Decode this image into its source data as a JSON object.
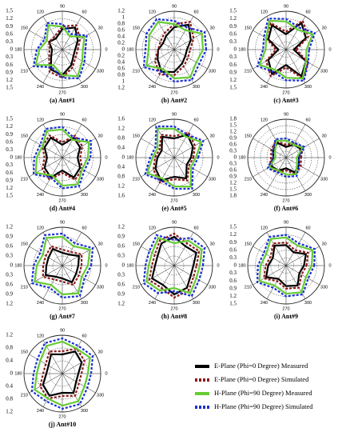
{
  "chart_data": [
    {
      "type": "polar",
      "title": "(a) Ant#1",
      "theta": [
        0,
        30,
        60,
        90,
        120,
        150,
        180,
        210,
        240,
        270,
        300,
        330
      ],
      "rlim": [
        0,
        1.5
      ],
      "rticks": [
        0,
        0.3,
        0.6,
        0.9,
        1.2,
        1.5
      ],
      "series": [
        {
          "name": "E-Plane (Phi=0 Degree) Measured",
          "color": "#000000",
          "values": [
            0.5,
            0.7,
            1.0,
            0.8,
            0.5,
            0.6,
            0.4,
            0.5,
            0.9,
            1.0,
            0.7,
            0.5
          ]
        },
        {
          "name": "E-Plane (Phi=0 Degree) Simulated",
          "color": "#8b1a1a",
          "values": [
            0.6,
            0.8,
            1.1,
            0.9,
            0.6,
            0.6,
            0.5,
            0.6,
            1.0,
            1.1,
            0.8,
            0.6
          ]
        },
        {
          "name": "H-Plane (Phi=90 Degree) Measured",
          "color": "#66cc33",
          "values": [
            0.8,
            1.0,
            0.6,
            0.9,
            1.1,
            0.7,
            0.9,
            1.2,
            0.7,
            1.0,
            1.2,
            0.9
          ]
        },
        {
          "name": "H-Plane (Phi=90 Degree) Simulated",
          "color": "#1a2fd6",
          "values": [
            0.9,
            1.1,
            0.7,
            1.0,
            1.2,
            0.8,
            1.0,
            1.3,
            0.8,
            1.1,
            1.3,
            1.0
          ]
        }
      ]
    },
    {
      "type": "polar",
      "title": "(b) Ant#2",
      "theta": [
        0,
        30,
        60,
        90,
        120,
        150,
        180,
        210,
        240,
        270,
        300,
        330
      ],
      "rlim": [
        0,
        1.2
      ],
      "rticks": [
        0,
        0.2,
        0.4,
        0.6,
        0.8,
        1.0,
        1.2
      ],
      "series": [
        {
          "name": "E-Plane (Phi=0 Degree) Measured",
          "color": "#000000",
          "values": [
            0.4,
            0.6,
            0.9,
            0.7,
            0.5,
            0.4,
            0.5,
            0.6,
            0.8,
            0.7,
            0.5,
            0.4
          ]
        },
        {
          "name": "E-Plane (Phi=0 Degree) Simulated",
          "color": "#8b1a1a",
          "values": [
            0.5,
            0.7,
            1.0,
            0.8,
            0.6,
            0.5,
            0.5,
            0.7,
            0.9,
            0.8,
            0.6,
            0.5
          ]
        },
        {
          "name": "H-Plane (Phi=90 Degree) Measured",
          "color": "#66cc33",
          "values": [
            0.9,
            1.0,
            0.7,
            0.8,
            1.0,
            0.9,
            0.8,
            1.0,
            0.7,
            0.9,
            1.0,
            0.8
          ]
        },
        {
          "name": "H-Plane (Phi=90 Degree) Simulated",
          "color": "#1a2fd6",
          "values": [
            1.0,
            1.1,
            0.8,
            0.9,
            1.1,
            1.0,
            0.9,
            1.1,
            0.8,
            1.0,
            1.1,
            0.9
          ]
        }
      ]
    },
    {
      "type": "polar",
      "title": "(c) Ant#3",
      "theta": [
        0,
        30,
        60,
        90,
        120,
        150,
        180,
        210,
        240,
        270,
        300,
        330
      ],
      "rlim": [
        0,
        1.5
      ],
      "rticks": [
        0,
        0.3,
        0.6,
        0.9,
        1.2,
        1.5
      ],
      "series": [
        {
          "name": "E-Plane (Phi=0 Degree) Measured",
          "color": "#000000",
          "values": [
            0.3,
            0.9,
            1.2,
            0.6,
            1.1,
            0.8,
            0.3,
            0.8,
            1.1,
            0.6,
            1.2,
            0.9
          ]
        },
        {
          "name": "E-Plane (Phi=0 Degree) Simulated",
          "color": "#8b1a1a",
          "values": [
            0.4,
            1.0,
            1.3,
            0.7,
            1.2,
            0.9,
            0.4,
            0.9,
            1.2,
            0.7,
            1.3,
            1.0
          ]
        },
        {
          "name": "H-Plane (Phi=90 Degree) Measured",
          "color": "#66cc33",
          "values": [
            0.8,
            1.2,
            0.9,
            1.1,
            1.3,
            0.9,
            0.8,
            1.2,
            0.9,
            1.1,
            1.3,
            0.9
          ]
        },
        {
          "name": "H-Plane (Phi=90 Degree) Simulated",
          "color": "#1a2fd6",
          "values": [
            0.9,
            1.3,
            1.0,
            1.2,
            1.4,
            1.0,
            0.9,
            1.3,
            1.0,
            1.2,
            1.4,
            1.0
          ]
        }
      ]
    },
    {
      "type": "polar",
      "title": "(d) Ant#4",
      "theta": [
        0,
        30,
        60,
        90,
        120,
        150,
        180,
        210,
        240,
        270,
        300,
        330
      ],
      "rlim": [
        0,
        1.5
      ],
      "rticks": [
        0,
        0.3,
        0.6,
        0.9,
        1.2,
        1.5
      ],
      "series": [
        {
          "name": "E-Plane (Phi=0 Degree) Measured",
          "color": "#000000",
          "values": [
            0.6,
            0.8,
            0.9,
            0.5,
            0.9,
            0.8,
            0.6,
            0.8,
            0.9,
            0.5,
            0.9,
            0.8
          ]
        },
        {
          "name": "E-Plane (Phi=0 Degree) Simulated",
          "color": "#8b1a1a",
          "values": [
            0.7,
            0.9,
            1.0,
            0.6,
            1.0,
            0.9,
            0.7,
            0.9,
            1.0,
            0.6,
            1.0,
            0.9
          ]
        },
        {
          "name": "H-Plane (Phi=90 Degree) Measured",
          "color": "#66cc33",
          "values": [
            1.0,
            1.2,
            0.8,
            1.1,
            1.2,
            0.9,
            1.0,
            1.2,
            0.8,
            1.1,
            1.2,
            0.9
          ]
        },
        {
          "name": "H-Plane (Phi=90 Degree) Simulated",
          "color": "#1a2fd6",
          "values": [
            1.1,
            1.3,
            0.9,
            1.2,
            1.3,
            1.0,
            1.1,
            1.3,
            0.9,
            1.2,
            1.3,
            1.0
          ]
        }
      ]
    },
    {
      "type": "polar",
      "title": "(e) Ant#5",
      "theta": [
        0,
        30,
        60,
        90,
        120,
        150,
        180,
        210,
        240,
        270,
        300,
        330
      ],
      "rlim": [
        0,
        1.6
      ],
      "rticks": [
        0,
        0.4,
        0.8,
        1.2,
        1.6
      ],
      "series": [
        {
          "name": "E-Plane (Phi=0 Degree) Measured",
          "color": "#000000",
          "values": [
            0.7,
            0.9,
            1.1,
            0.8,
            1.0,
            0.6,
            0.7,
            0.9,
            1.1,
            0.8,
            1.0,
            0.6
          ]
        },
        {
          "name": "E-Plane (Phi=0 Degree) Simulated",
          "color": "#8b1a1a",
          "values": [
            0.8,
            1.0,
            1.2,
            0.9,
            1.1,
            0.7,
            0.8,
            1.0,
            1.2,
            0.9,
            1.1,
            0.7
          ]
        },
        {
          "name": "H-Plane (Phi=90 Degree) Measured",
          "color": "#66cc33",
          "values": [
            0.9,
            1.3,
            1.0,
            1.2,
            1.4,
            0.8,
            0.9,
            1.3,
            1.0,
            1.2,
            1.4,
            0.8
          ]
        },
        {
          "name": "H-Plane (Phi=90 Degree) Simulated",
          "color": "#1a2fd6",
          "values": [
            1.0,
            1.4,
            1.1,
            1.3,
            1.5,
            0.9,
            1.0,
            1.4,
            1.1,
            1.3,
            1.5,
            0.9
          ]
        }
      ]
    },
    {
      "type": "polar",
      "title": "(f) Ant#6",
      "theta": [
        0,
        30,
        60,
        90,
        120,
        150,
        180,
        210,
        240,
        270,
        300,
        330
      ],
      "rlim": [
        0,
        1.8
      ],
      "rticks": [
        0,
        0.3,
        0.6,
        0.9,
        1.2,
        1.5,
        1.8
      ],
      "series": [
        {
          "name": "E-Plane (Phi=0 Degree) Measured",
          "color": "#000000",
          "values": [
            0.6,
            0.8,
            0.7,
            0.5,
            0.8,
            0.7,
            0.6,
            0.8,
            0.7,
            0.5,
            0.8,
            0.7
          ]
        },
        {
          "name": "E-Plane (Phi=0 Degree) Simulated",
          "color": "#8b1a1a",
          "values": [
            0.7,
            0.9,
            0.8,
            0.6,
            0.9,
            0.8,
            0.7,
            0.9,
            0.8,
            0.6,
            0.9,
            0.8
          ]
        },
        {
          "name": "H-Plane (Phi=90 Degree) Measured",
          "color": "#66cc33",
          "values": [
            0.5,
            0.9,
            0.7,
            0.8,
            0.9,
            0.6,
            0.5,
            0.9,
            0.7,
            0.8,
            0.9,
            0.6
          ]
        },
        {
          "name": "H-Plane (Phi=90 Degree) Simulated",
          "color": "#1a2fd6",
          "values": [
            0.6,
            1.0,
            0.8,
            0.9,
            1.0,
            0.7,
            0.6,
            1.0,
            0.8,
            0.9,
            1.0,
            0.7
          ]
        }
      ]
    },
    {
      "type": "polar",
      "title": "(g) Ant#7",
      "theta": [
        0,
        30,
        60,
        90,
        120,
        150,
        180,
        210,
        240,
        270,
        300,
        330
      ],
      "rlim": [
        0,
        1.2
      ],
      "rticks": [
        0,
        0.3,
        0.6,
        0.9,
        1.2
      ],
      "series": [
        {
          "name": "E-Plane (Phi=0 Degree) Measured",
          "color": "#000000",
          "values": [
            0.5,
            0.6,
            0.4,
            0.4,
            0.6,
            0.5,
            0.5,
            0.6,
            0.4,
            0.4,
            0.6,
            0.5
          ]
        },
        {
          "name": "E-Plane (Phi=0 Degree) Simulated",
          "color": "#8b1a1a",
          "values": [
            0.6,
            0.7,
            0.5,
            0.5,
            0.7,
            0.6,
            0.6,
            0.7,
            0.5,
            0.5,
            0.7,
            0.6
          ]
        },
        {
          "name": "H-Plane (Phi=90 Degree) Measured",
          "color": "#66cc33",
          "values": [
            0.8,
            1.0,
            0.7,
            0.9,
            1.0,
            0.7,
            0.8,
            1.0,
            0.7,
            0.9,
            1.0,
            0.7
          ]
        },
        {
          "name": "H-Plane (Phi=90 Degree) Simulated",
          "color": "#1a2fd6",
          "values": [
            0.9,
            1.1,
            0.8,
            1.0,
            1.1,
            0.8,
            0.9,
            1.1,
            0.8,
            1.0,
            1.1,
            0.8
          ]
        }
      ]
    },
    {
      "type": "polar",
      "title": "(h) Ant#8",
      "theta": [
        0,
        30,
        60,
        90,
        120,
        150,
        180,
        210,
        240,
        270,
        300,
        330
      ],
      "rlim": [
        0,
        1.2
      ],
      "rticks": [
        0,
        0.3,
        0.6,
        0.9,
        1.2
      ],
      "series": [
        {
          "name": "E-Plane (Phi=0 Degree) Measured",
          "color": "#000000",
          "values": [
            0.6,
            0.8,
            0.7,
            0.9,
            0.8,
            0.6,
            0.6,
            0.8,
            0.7,
            0.9,
            0.8,
            0.6
          ]
        },
        {
          "name": "E-Plane (Phi=0 Degree) Simulated",
          "color": "#8b1a1a",
          "values": [
            0.7,
            0.9,
            0.8,
            1.0,
            0.9,
            0.7,
            0.7,
            0.9,
            0.8,
            1.0,
            0.9,
            0.7
          ]
        },
        {
          "name": "H-Plane (Phi=90 Degree) Measured",
          "color": "#66cc33",
          "values": [
            0.8,
            1.0,
            0.9,
            0.7,
            1.0,
            0.8,
            0.8,
            1.0,
            0.9,
            0.7,
            1.0,
            0.8
          ]
        },
        {
          "name": "H-Plane (Phi=90 Degree) Simulated",
          "color": "#1a2fd6",
          "values": [
            0.9,
            1.1,
            1.0,
            0.8,
            1.1,
            0.9,
            0.9,
            1.1,
            1.0,
            0.8,
            1.1,
            0.9
          ]
        }
      ]
    },
    {
      "type": "polar",
      "title": "(i) Ant#9",
      "theta": [
        0,
        30,
        60,
        90,
        120,
        150,
        180,
        210,
        240,
        270,
        300,
        330
      ],
      "rlim": [
        0,
        1.5
      ],
      "rticks": [
        0,
        0.3,
        0.6,
        0.9,
        1.2,
        1.5
      ],
      "series": [
        {
          "name": "E-Plane (Phi=0 Degree) Measured",
          "color": "#000000",
          "values": [
            0.7,
            0.9,
            0.6,
            0.8,
            0.9,
            0.6,
            0.7,
            0.9,
            0.6,
            0.8,
            0.9,
            0.6
          ]
        },
        {
          "name": "E-Plane (Phi=0 Degree) Simulated",
          "color": "#8b1a1a",
          "values": [
            0.8,
            1.0,
            0.7,
            0.9,
            1.0,
            0.7,
            0.8,
            1.0,
            0.7,
            0.9,
            1.0,
            0.7
          ]
        },
        {
          "name": "H-Plane (Phi=90 Degree) Measured",
          "color": "#66cc33",
          "values": [
            1.0,
            1.2,
            0.9,
            1.1,
            1.2,
            0.9,
            1.0,
            1.2,
            0.9,
            1.1,
            1.2,
            0.9
          ]
        },
        {
          "name": "H-Plane (Phi=90 Degree) Simulated",
          "color": "#1a2fd6",
          "values": [
            1.1,
            1.3,
            1.0,
            1.2,
            1.3,
            1.0,
            1.1,
            1.3,
            1.0,
            1.2,
            1.3,
            1.0
          ]
        }
      ]
    },
    {
      "type": "polar",
      "title": "(j) Ant#10",
      "theta": [
        0,
        30,
        60,
        90,
        120,
        150,
        180,
        210,
        240,
        270,
        300,
        330
      ],
      "rlim": [
        0,
        1.2
      ],
      "rticks": [
        0,
        0.4,
        0.8,
        1.2
      ],
      "series": [
        {
          "name": "E-Plane (Phi=0 Degree) Measured",
          "color": "#000000",
          "values": [
            0.5,
            0.7,
            0.8,
            0.6,
            0.7,
            0.5,
            0.5,
            0.7,
            0.8,
            0.6,
            0.7,
            0.5
          ]
        },
        {
          "name": "E-Plane (Phi=0 Degree) Simulated",
          "color": "#8b1a1a",
          "values": [
            0.6,
            0.8,
            0.9,
            0.7,
            0.8,
            0.6,
            0.6,
            0.8,
            0.9,
            0.7,
            0.8,
            0.6
          ]
        },
        {
          "name": "H-Plane (Phi=90 Degree) Measured",
          "color": "#66cc33",
          "values": [
            0.8,
            1.0,
            0.9,
            1.0,
            1.0,
            0.8,
            0.8,
            1.0,
            0.9,
            1.0,
            1.0,
            0.8
          ]
        },
        {
          "name": "H-Plane (Phi=90 Degree) Simulated",
          "color": "#1a2fd6",
          "values": [
            0.9,
            1.1,
            1.0,
            1.1,
            1.1,
            0.9,
            0.9,
            1.1,
            1.0,
            1.1,
            1.1,
            0.9
          ]
        }
      ]
    }
  ]
}
